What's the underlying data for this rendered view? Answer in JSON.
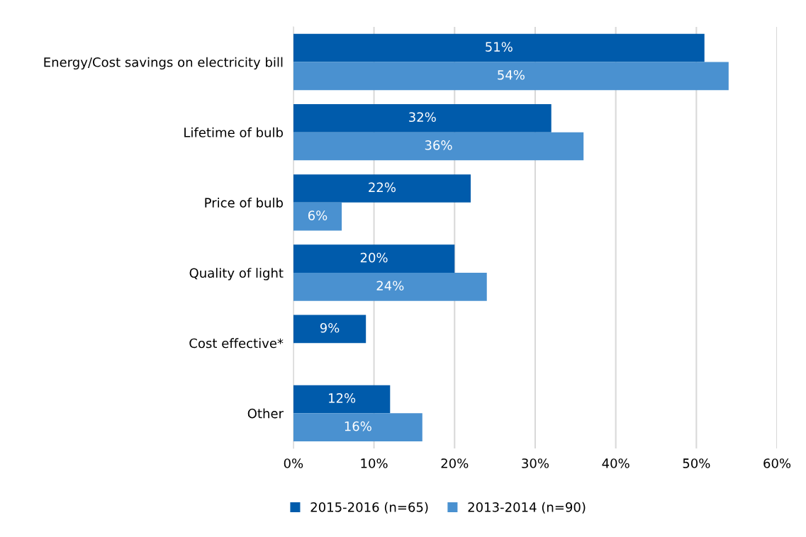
{
  "chart_data": {
    "type": "bar",
    "orientation": "horizontal",
    "categories": [
      "Energy/Cost savings on electricity bill",
      "Lifetime of bulb",
      "Price of bulb",
      "Quality of light",
      "Cost effective*",
      "Other"
    ],
    "series": [
      {
        "name": "2015-2016 (n=65)",
        "color": "#005bab",
        "values": [
          51,
          32,
          22,
          20,
          9,
          12
        ],
        "value_labels": [
          "51%",
          "32%",
          "22%",
          "20%",
          "9%",
          "12%"
        ]
      },
      {
        "name": "2013-2014 (n=90)",
        "color": "#4a91d0",
        "values": [
          54,
          36,
          6,
          24,
          null,
          16
        ],
        "value_labels": [
          "54%",
          "36%",
          "6%",
          "24%",
          null,
          "16%"
        ]
      }
    ],
    "xlim": [
      0,
      60
    ],
    "xticks": [
      {
        "value": 0,
        "label": "0%"
      },
      {
        "value": 10,
        "label": "10%"
      },
      {
        "value": 20,
        "label": "20%"
      },
      {
        "value": 30,
        "label": "30%"
      },
      {
        "value": 40,
        "label": "40%"
      },
      {
        "value": 50,
        "label": "50%"
      },
      {
        "value": 60,
        "label": "60%"
      }
    ],
    "grid": "x",
    "legend": "bottom"
  }
}
